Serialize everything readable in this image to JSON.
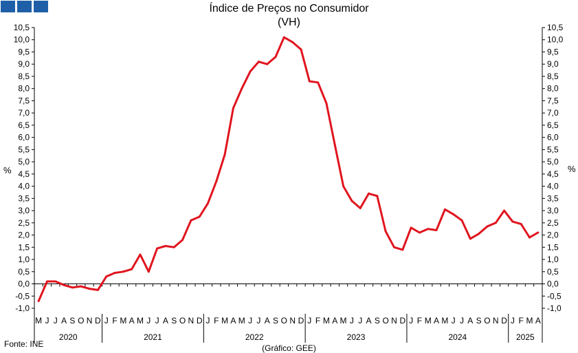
{
  "chart_data": {
    "type": "line",
    "title": "Índice de Preços no Consumidor",
    "subtitle": "(VH)",
    "ylabel": "%",
    "ylim": [
      -1.0,
      10.5
    ],
    "yticks": [
      "-1,0",
      "-0,5",
      "0,0",
      "0,5",
      "1,0",
      "1,5",
      "2,0",
      "2,5",
      "3,0",
      "3,5",
      "4,0",
      "4,5",
      "5,0",
      "5,5",
      "6,0",
      "6,5",
      "7,0",
      "7,5",
      "8,0",
      "8,5",
      "9,0",
      "9,5",
      "10,0",
      "10,5"
    ],
    "grid": false,
    "month_labels": [
      "M",
      "J",
      "J",
      "A",
      "S",
      "O",
      "N",
      "D",
      "J",
      "F",
      "M",
      "A",
      "M",
      "J",
      "J",
      "A",
      "S",
      "O",
      "N",
      "D",
      "J",
      "F",
      "M",
      "A",
      "M",
      "J",
      "J",
      "A",
      "S",
      "O",
      "N",
      "D",
      "J",
      "F",
      "M",
      "A",
      "M",
      "J",
      "J",
      "A",
      "S",
      "O",
      "N",
      "D",
      "J",
      "F",
      "M",
      "A",
      "M",
      "J",
      "J",
      "A",
      "S",
      "O",
      "N",
      "D",
      "J",
      "F",
      "M",
      "A"
    ],
    "years": [
      {
        "label": "2020",
        "months": 8
      },
      {
        "label": "2021",
        "months": 12
      },
      {
        "label": "2022",
        "months": 12
      },
      {
        "label": "2023",
        "months": 12
      },
      {
        "label": "2024",
        "months": 12
      },
      {
        "label": "2025",
        "months": 4
      }
    ],
    "series": [
      {
        "color": "#e0141e",
        "values": [
          -0.7,
          0.1,
          0.1,
          -0.05,
          -0.15,
          -0.1,
          -0.2,
          -0.25,
          0.3,
          0.45,
          0.5,
          0.6,
          1.2,
          0.5,
          1.45,
          1.55,
          1.5,
          1.8,
          2.6,
          2.75,
          3.3,
          4.2,
          5.3,
          7.2,
          8.0,
          8.7,
          9.1,
          9.0,
          9.3,
          10.1,
          9.9,
          9.6,
          8.3,
          8.25,
          7.4,
          5.7,
          4.0,
          3.4,
          3.1,
          3.7,
          3.6,
          2.15,
          1.5,
          1.4,
          2.3,
          2.1,
          2.25,
          2.2,
          3.05,
          2.85,
          2.6,
          1.85,
          2.05,
          2.35,
          2.5,
          3.0,
          2.55,
          2.45,
          1.9,
          2.1
        ]
      }
    ]
  },
  "source": "Fonte: INE",
  "credit": "(Gráfico: GEE)"
}
